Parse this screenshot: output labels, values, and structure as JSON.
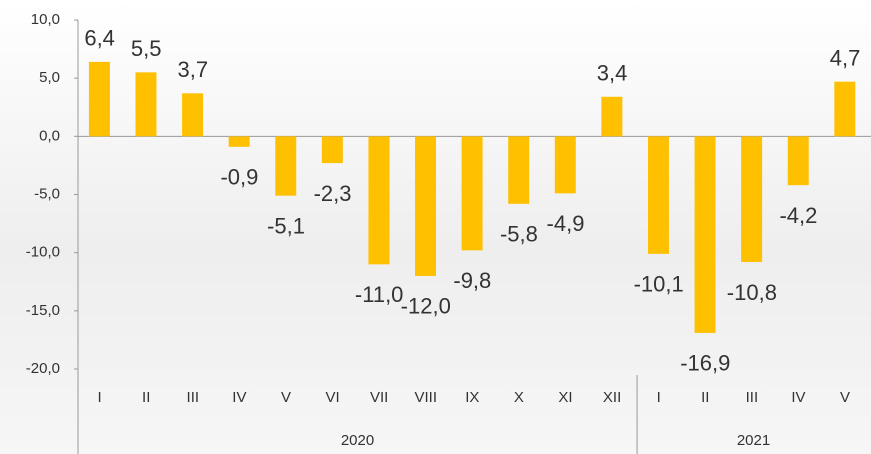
{
  "chart_data": {
    "type": "bar",
    "groups": [
      {
        "name": "2020",
        "categories": [
          "I",
          "II",
          "III",
          "IV",
          "V",
          "VI",
          "VII",
          "VIII",
          "IX",
          "X",
          "XI",
          "XII"
        ]
      },
      {
        "name": "2021",
        "categories": [
          "I",
          "II",
          "III",
          "IV",
          "V"
        ]
      }
    ],
    "values": [
      6.4,
      5.5,
      3.7,
      -0.9,
      -5.1,
      -2.3,
      -11.0,
      -12.0,
      -9.8,
      -5.8,
      -4.9,
      3.4,
      -10.1,
      -16.9,
      -10.8,
      -4.2,
      4.7
    ],
    "value_labels": [
      "6,4",
      "5,5",
      "3,7",
      "-0,9",
      "-5,1",
      "-2,3",
      "-11,0",
      "-12,0",
      "-9,8",
      "-5,8",
      "-4,9",
      "3,4",
      "-10,1",
      "-16,9",
      "-10,8",
      "-4,2",
      "4,7"
    ],
    "color": "#ffc000",
    "ylim": [
      -20,
      10
    ],
    "yticks": [
      {
        "value": 10,
        "label": "10,0"
      },
      {
        "value": 5,
        "label": "5,0"
      },
      {
        "value": 0,
        "label": "0,0"
      },
      {
        "value": -5,
        "label": "-5,0"
      },
      {
        "value": -10,
        "label": "-10,0"
      },
      {
        "value": -15,
        "label": "-15,0"
      },
      {
        "value": -20,
        "label": "-20,0"
      }
    ]
  }
}
